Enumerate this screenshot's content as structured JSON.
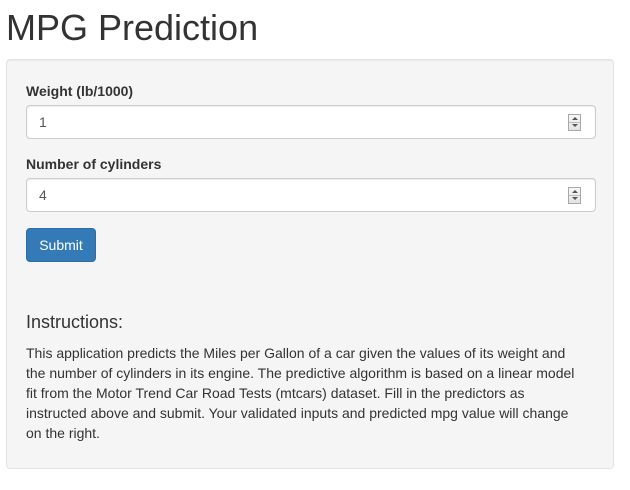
{
  "page": {
    "title": "MPG Prediction"
  },
  "form": {
    "weight_label": "Weight (lb/1000)",
    "weight_value": "1",
    "cylinders_label": "Number of cylinders",
    "cylinders_value": "4",
    "submit_label": "Submit"
  },
  "instructions": {
    "heading": "Instructions:",
    "text": "This application predicts the Miles per Gallon of a car given the values of its weight and the number of cylinders in its engine. The predictive algorithm is based on a linear model fit from the Motor Trend Car Road Tests (mtcars) dataset. Fill in the predictors as instructed above and submit. Your validated inputs and predicted mpg value will change on the right."
  },
  "colors": {
    "primary_button": "#337ab7",
    "well_background": "#f5f5f5",
    "text": "#333333"
  }
}
